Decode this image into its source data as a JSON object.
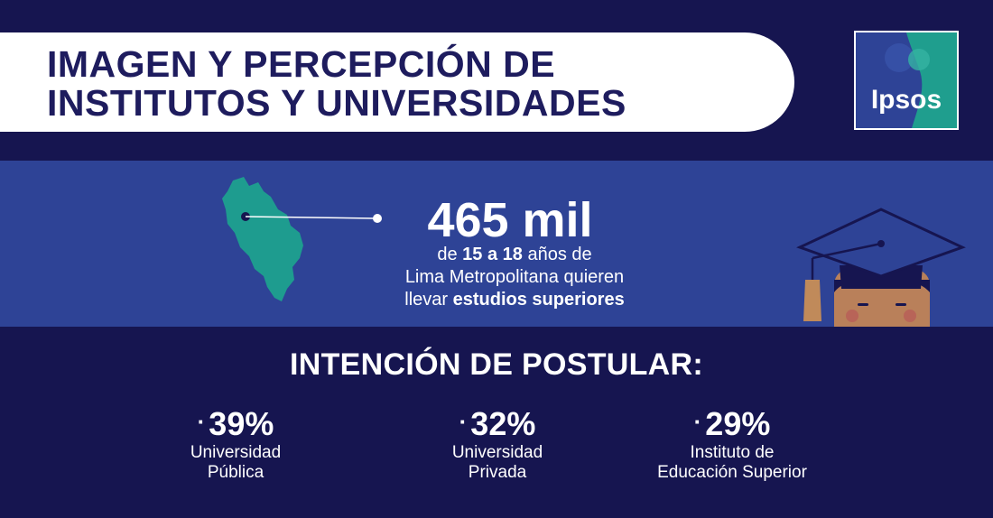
{
  "header": {
    "title_line1": "IMAGEN Y PERCEPCIÓN DE",
    "title_line2": "INSTITUTOS Y UNIVERSIDADES",
    "logo_text": "Ipsos"
  },
  "highlight": {
    "number": "465 mil",
    "line1_pre": "de ",
    "line1_bold": "15 a 18",
    "line1_post": " años de",
    "line2": "Lima Metropolitana quieren",
    "line3_pre": "llevar ",
    "line3_bold": "estudios superiores"
  },
  "section": {
    "title": "INTENCIÓN DE POSTULAR:",
    "items": [
      {
        "bullet": "·",
        "percent": "39%",
        "label_line1": "Universidad",
        "label_line2": "Pública"
      },
      {
        "bullet": "·",
        "percent": "32%",
        "label_line1": "Universidad",
        "label_line2": "Privada"
      },
      {
        "bullet": "·",
        "percent": "29%",
        "label_line1": "Instituto de",
        "label_line2": "Educación Superior"
      }
    ]
  },
  "icons": {
    "map": "lima-map-icon",
    "graduate": "graduate-cap-icon",
    "logo": "ipsos-logo"
  },
  "colors": {
    "background": "#161550",
    "band": "#2e4396",
    "map": "#1e9c8f",
    "title_text": "#1e1c5e",
    "logo_teal": "#1f9e8e",
    "logo_blue": "#2e4396"
  }
}
